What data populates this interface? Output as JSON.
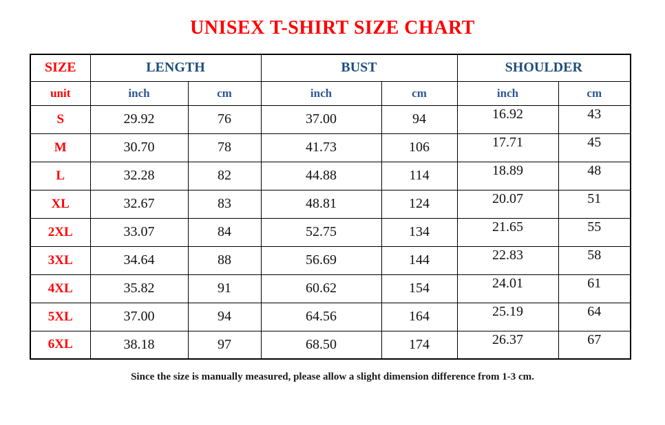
{
  "page": {
    "title": "UNISEX T-SHIRT SIZE CHART",
    "footnote": "Since the size is manually measured, please allow a slight dimension difference from 1-3 cm."
  },
  "colors": {
    "accent_red": "#ff0000",
    "header_blue": "#1f4e79",
    "unit_blue": "#2f5496",
    "border": "#000000",
    "background": "#ffffff"
  },
  "table": {
    "group_headers": {
      "size": "SIZE",
      "length": "LENGTH",
      "bust": "BUST",
      "shoulder": "SHOULDER"
    },
    "unit_row": {
      "label": "unit",
      "length_inch": "inch",
      "length_cm": "cm",
      "bust_inch": "inch",
      "bust_cm": "cm",
      "shoulder_inch": "inch",
      "shoulder_cm": "cm"
    },
    "rows": [
      {
        "size": "S",
        "length_inch": "29.92",
        "length_cm": "76",
        "bust_inch": "37.00",
        "bust_cm": "94",
        "shoulder_inch": "16.92",
        "shoulder_cm": "43"
      },
      {
        "size": "M",
        "length_inch": "30.70",
        "length_cm": "78",
        "bust_inch": "41.73",
        "bust_cm": "106",
        "shoulder_inch": "17.71",
        "shoulder_cm": "45"
      },
      {
        "size": "L",
        "length_inch": "32.28",
        "length_cm": "82",
        "bust_inch": "44.88",
        "bust_cm": "114",
        "shoulder_inch": "18.89",
        "shoulder_cm": "48"
      },
      {
        "size": "XL",
        "length_inch": "32.67",
        "length_cm": "83",
        "bust_inch": "48.81",
        "bust_cm": "124",
        "shoulder_inch": "20.07",
        "shoulder_cm": "51"
      },
      {
        "size": "2XL",
        "length_inch": "33.07",
        "length_cm": "84",
        "bust_inch": "52.75",
        "bust_cm": "134",
        "shoulder_inch": "21.65",
        "shoulder_cm": "55"
      },
      {
        "size": "3XL",
        "length_inch": "34.64",
        "length_cm": "88",
        "bust_inch": "56.69",
        "bust_cm": "144",
        "shoulder_inch": "22.83",
        "shoulder_cm": "58"
      },
      {
        "size": "4XL",
        "length_inch": "35.82",
        "length_cm": "91",
        "bust_inch": "60.62",
        "bust_cm": "154",
        "shoulder_inch": "24.01",
        "shoulder_cm": "61"
      },
      {
        "size": "5XL",
        "length_inch": "37.00",
        "length_cm": "94",
        "bust_inch": "64.56",
        "bust_cm": "164",
        "shoulder_inch": "25.19",
        "shoulder_cm": "64"
      },
      {
        "size": "6XL",
        "length_inch": "38.18",
        "length_cm": "97",
        "bust_inch": "68.50",
        "bust_cm": "174",
        "shoulder_inch": "26.37",
        "shoulder_cm": "67"
      }
    ]
  }
}
